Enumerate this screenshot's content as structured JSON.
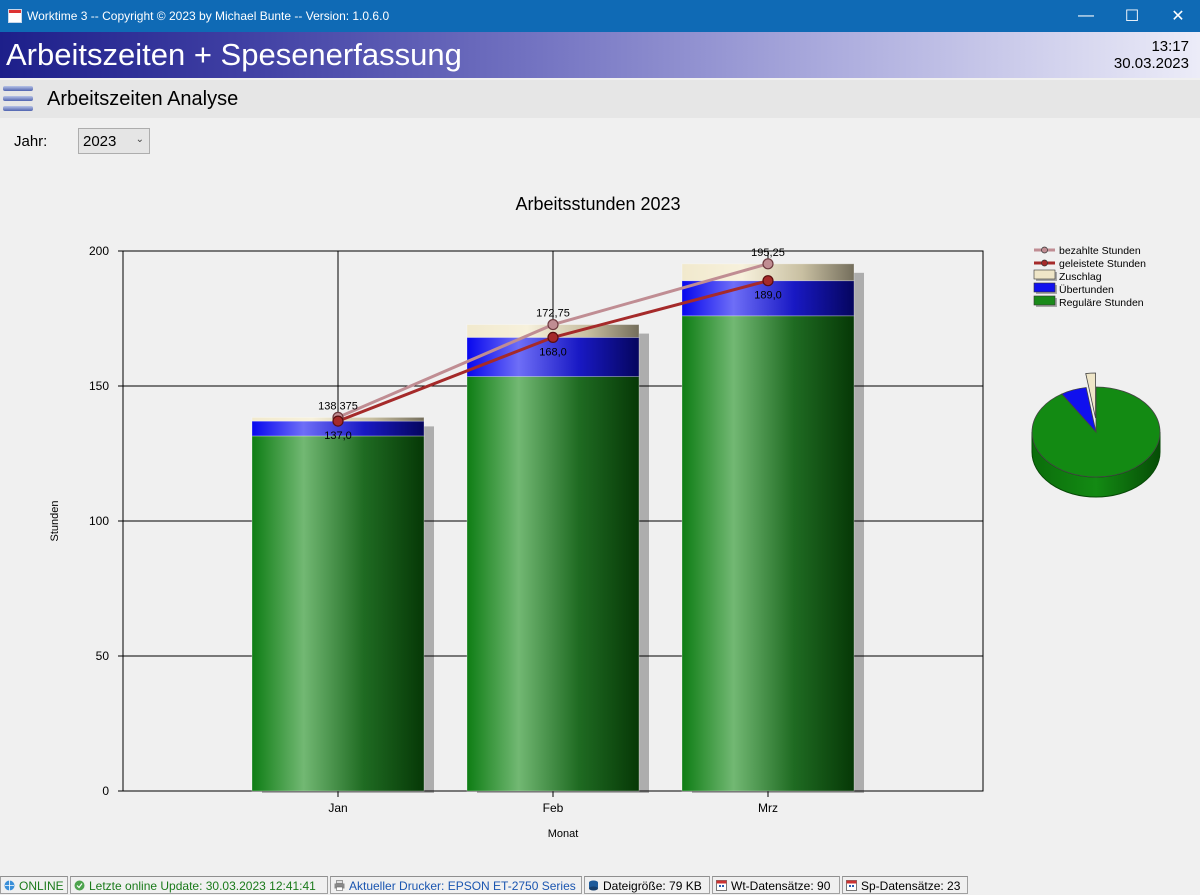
{
  "window": {
    "title": "Worktime 3 -- Copyright © 2023 by Michael Bunte -- Version: 1.0.6.0",
    "controls": {
      "minimize": "—",
      "maximize": "☐",
      "close": "✕"
    }
  },
  "header": {
    "app_title": "Arbeitszeiten + Spesenerfassung",
    "time": "13:17",
    "date": "30.03.2023"
  },
  "subheader": {
    "title": "Arbeitszeiten Analyse"
  },
  "filter": {
    "year_label": "Jahr:",
    "year_value": "2023"
  },
  "chart_data": {
    "type": "bar",
    "title": "Arbeitsstunden 2023",
    "xlabel": "Monat",
    "ylabel": "Stunden",
    "ylim": [
      0,
      200
    ],
    "yticks": [
      0,
      50,
      100,
      150,
      200
    ],
    "categories": [
      "Jan",
      "Feb",
      "Mrz"
    ],
    "stacked_series": [
      {
        "name": "Reguläre Stunden",
        "values": [
          131.5,
          153.5,
          176.0
        ],
        "color": "#1a8a1a"
      },
      {
        "name": "Übertunden",
        "values": [
          5.5,
          14.5,
          13.0
        ],
        "color": "#1010ee"
      },
      {
        "name": "Zuschlag",
        "values": [
          1.375,
          4.75,
          6.25
        ],
        "color": "#efe6c8"
      }
    ],
    "line_series": [
      {
        "name": "bezahlte Stunden",
        "values": [
          138.375,
          172.75,
          195.25
        ],
        "labels": [
          "138,375",
          "172,75",
          "195,25"
        ],
        "color": "#c08d93"
      },
      {
        "name": "geleistete Stunden",
        "values": [
          137.0,
          168.0,
          189.0
        ],
        "labels": [
          "137,0",
          "168,0",
          "189,0"
        ],
        "color": "#a52a2a"
      }
    ],
    "legend_order": [
      "bezahlte Stunden",
      "geleistete Stunden",
      "Zuschlag",
      "Übertunden",
      "Reguläre Stunden"
    ],
    "legend_position": "top-right",
    "grid": true,
    "pie": {
      "type": "pie",
      "slices": [
        {
          "name": "Reguläre Stunden",
          "value": 461.0,
          "color": "#138a13"
        },
        {
          "name": "Übertunden",
          "value": 33.0,
          "color": "#1010ee"
        },
        {
          "name": "Zuschlag",
          "value": 12.375,
          "color": "#efe6c8"
        }
      ]
    }
  },
  "statusbar": {
    "online": "ONLINE",
    "last_update": "Letzte online Update: 30.03.2023 12:41:41",
    "printer": "Aktueller Drucker: EPSON ET-2750 Series",
    "filesize": "Dateigröße: 79 KB",
    "wt_records": "Wt-Datensätze: 90",
    "sp_records": "Sp-Datensätze: 23",
    "colors": {
      "online": "#1a7a1a",
      "printer": "#1a55b0"
    }
  }
}
